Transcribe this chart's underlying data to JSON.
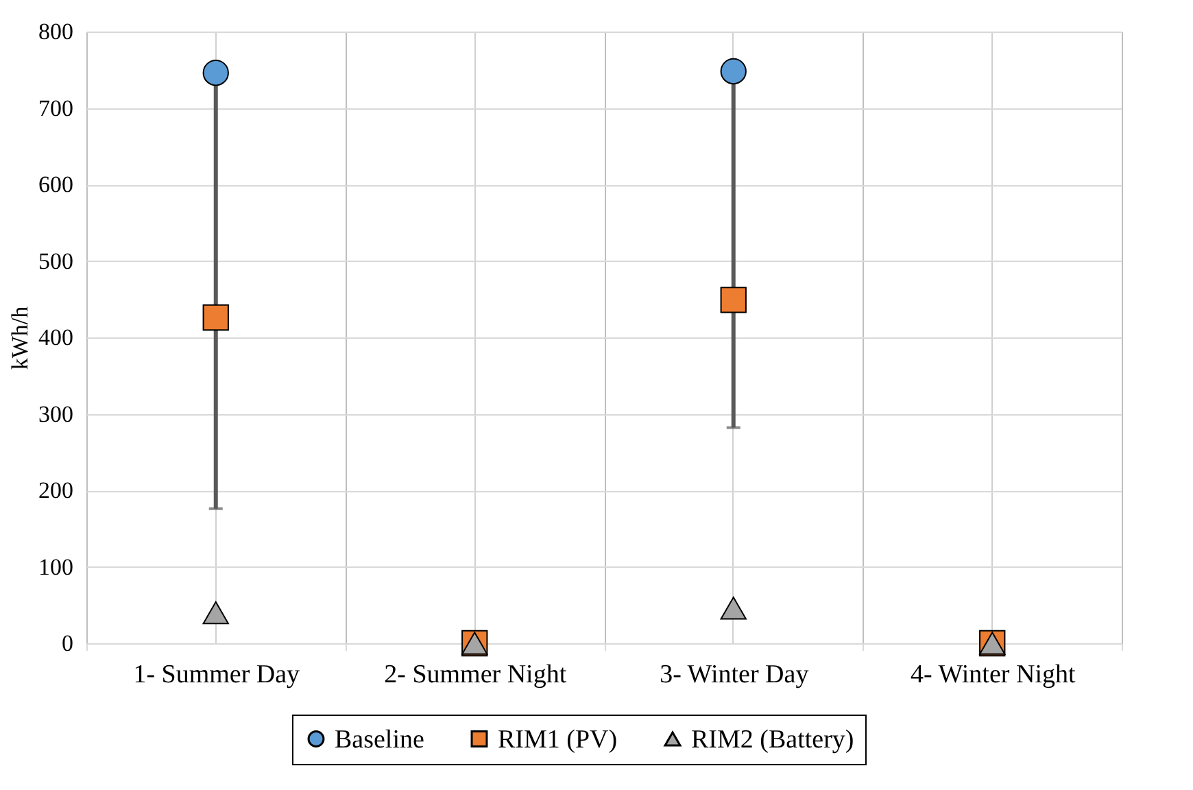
{
  "chart_data": {
    "type": "scatter",
    "ylabel": "kWh/h",
    "categories": [
      "1- Summer Day",
      "2- Summer Night",
      "3- Winter Day",
      "4- Winter Night"
    ],
    "series": [
      {
        "name": "Baseline",
        "color": "#5b9bd5",
        "marker": "circle",
        "values": [
          746,
          null,
          748,
          null
        ],
        "errors": [
          [
            176,
            746
          ],
          null,
          [
            282,
            748
          ],
          null
        ]
      },
      {
        "name": "RIM1 (PV)",
        "color": "#ed7d31",
        "marker": "square",
        "values": [
          426,
          0,
          449,
          0
        ]
      },
      {
        "name": "RIM2 (Battery)",
        "color": "#a5a5a5",
        "marker": "triangle",
        "values": [
          40,
          0,
          46,
          0
        ]
      }
    ],
    "ylim": [
      0,
      800
    ],
    "yticks": [
      0,
      100,
      200,
      300,
      400,
      500,
      600,
      700,
      800
    ],
    "grid": true,
    "legend": "bottom"
  }
}
